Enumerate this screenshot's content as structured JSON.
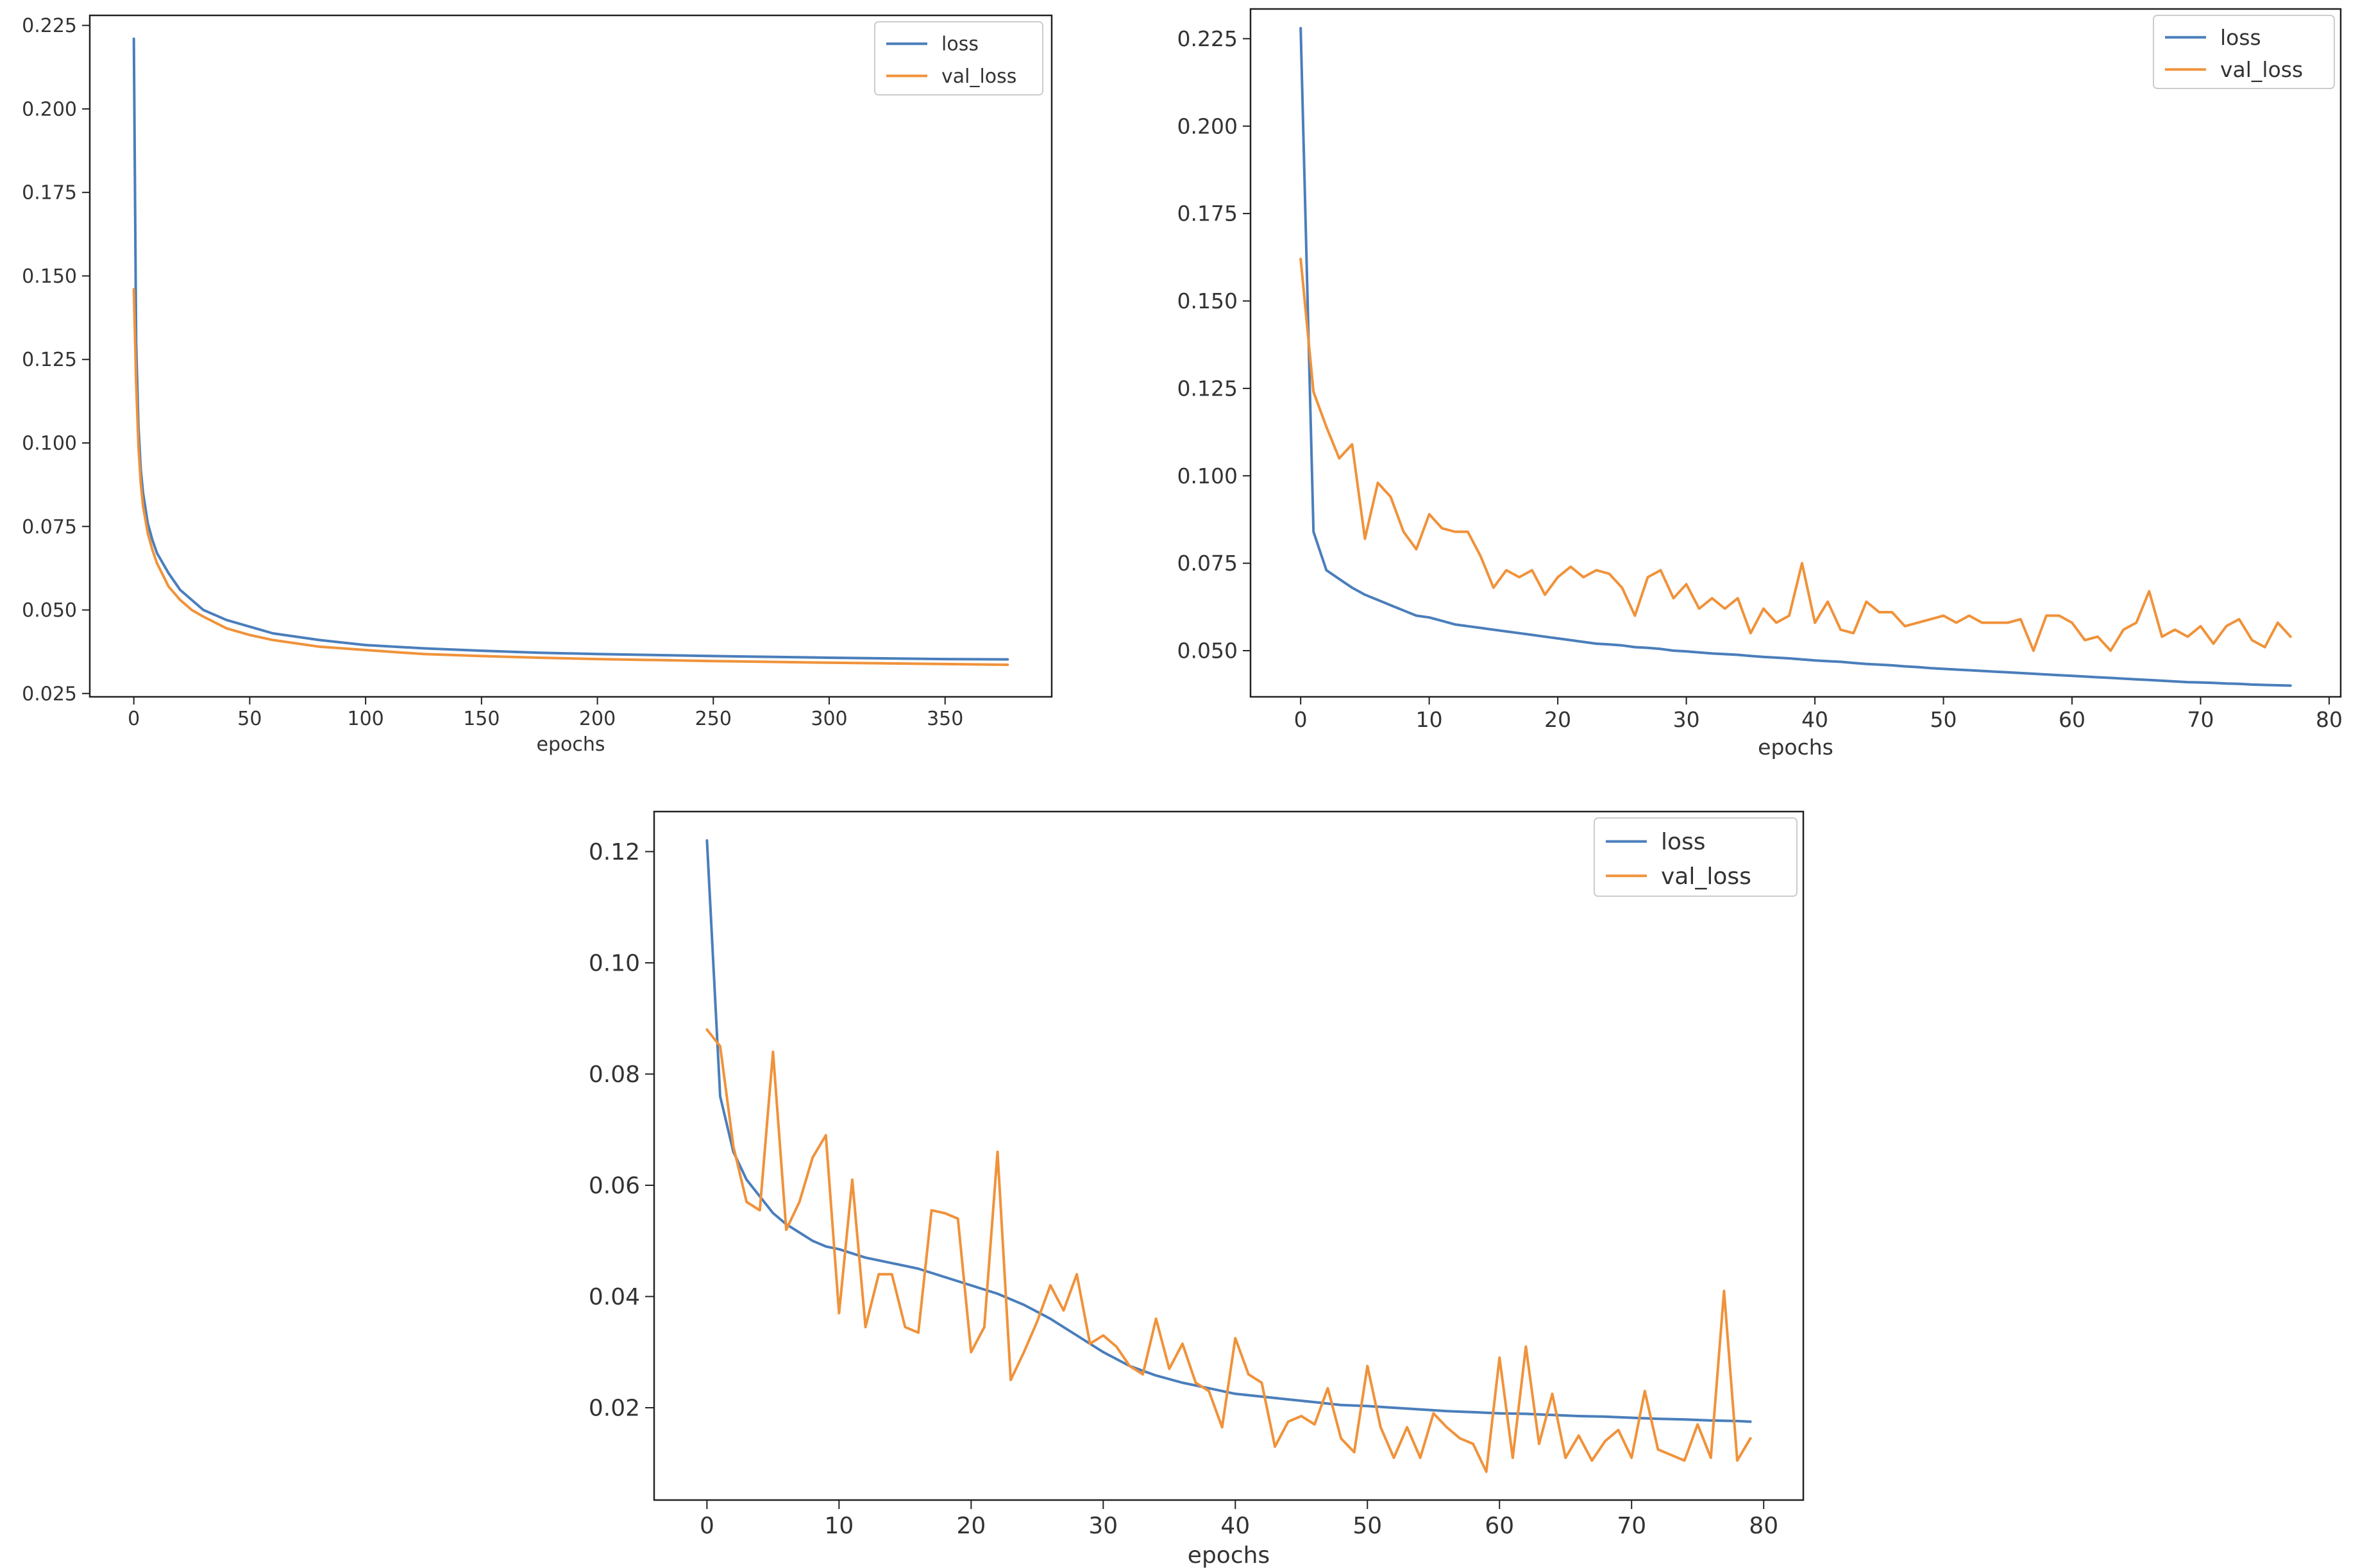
{
  "chart_data": [
    {
      "type": "line",
      "title": "",
      "xlabel": "epochs",
      "ylabel": "",
      "xlim": [
        -19,
        396
      ],
      "ylim": [
        0.024,
        0.228
      ],
      "xticks": [
        0,
        50,
        100,
        150,
        200,
        250,
        300,
        350
      ],
      "yticks": [
        0.025,
        0.05,
        0.075,
        0.1,
        0.125,
        0.15,
        0.175,
        0.2,
        0.225
      ],
      "ytick_labels": [
        "0.025",
        "0.050",
        "0.075",
        "0.100",
        "0.125",
        "0.150",
        "0.175",
        "0.200",
        "0.225"
      ],
      "legend_position": "top-right",
      "series": [
        {
          "name": "loss",
          "color": "#4a7ebb",
          "x": [
            0,
            1,
            2,
            3,
            4,
            6,
            8,
            10,
            15,
            20,
            25,
            30,
            40,
            50,
            60,
            80,
            100,
            125,
            150,
            175,
            200,
            250,
            300,
            350,
            377
          ],
          "y": [
            0.221,
            0.13,
            0.105,
            0.092,
            0.085,
            0.076,
            0.071,
            0.067,
            0.061,
            0.056,
            0.053,
            0.05,
            0.047,
            0.045,
            0.043,
            0.041,
            0.0395,
            0.0385,
            0.0378,
            0.0372,
            0.0368,
            0.0362,
            0.0357,
            0.0353,
            0.0352
          ]
        },
        {
          "name": "val_loss",
          "color": "#f0923a",
          "x": [
            0,
            1,
            2,
            3,
            4,
            6,
            8,
            10,
            15,
            20,
            25,
            30,
            40,
            50,
            60,
            80,
            100,
            125,
            150,
            175,
            200,
            250,
            300,
            350,
            377
          ],
          "y": [
            0.146,
            0.118,
            0.099,
            0.088,
            0.081,
            0.073,
            0.068,
            0.064,
            0.057,
            0.053,
            0.05,
            0.048,
            0.0445,
            0.0425,
            0.041,
            0.039,
            0.038,
            0.0368,
            0.0362,
            0.0357,
            0.0353,
            0.0347,
            0.0342,
            0.0338,
            0.0336
          ]
        }
      ]
    },
    {
      "type": "line",
      "title": "",
      "xlabel": "epochs",
      "ylabel": "",
      "xlim": [
        -3.9,
        80.9
      ],
      "ylim": [
        0.0368,
        0.2335
      ],
      "xticks": [
        0,
        10,
        20,
        30,
        40,
        50,
        60,
        70,
        80
      ],
      "yticks": [
        0.05,
        0.075,
        0.1,
        0.125,
        0.15,
        0.175,
        0.2,
        0.225
      ],
      "ytick_labels": [
        "0.050",
        "0.075",
        "0.100",
        "0.125",
        "0.150",
        "0.175",
        "0.200",
        "0.225"
      ],
      "legend_position": "top-right",
      "series": [
        {
          "name": "loss",
          "color": "#4a7ebb",
          "x": [
            0,
            1,
            2,
            3,
            4,
            5,
            6,
            7,
            8,
            9,
            10,
            11,
            12,
            13,
            14,
            15,
            16,
            17,
            18,
            19,
            20,
            21,
            22,
            23,
            24,
            25,
            26,
            27,
            28,
            29,
            30,
            31,
            32,
            33,
            34,
            35,
            36,
            37,
            38,
            39,
            40,
            41,
            42,
            43,
            44,
            45,
            46,
            47,
            48,
            49,
            50,
            51,
            52,
            53,
            54,
            55,
            56,
            57,
            58,
            59,
            60,
            61,
            62,
            63,
            64,
            65,
            66,
            67,
            68,
            69,
            70,
            71,
            72,
            73,
            74,
            75,
            76,
            77
          ],
          "y": [
            0.228,
            0.084,
            0.073,
            0.0705,
            0.068,
            0.066,
            0.0645,
            0.063,
            0.0615,
            0.06,
            0.0595,
            0.0585,
            0.0575,
            0.057,
            0.0565,
            0.056,
            0.0555,
            0.055,
            0.0545,
            0.054,
            0.0535,
            0.053,
            0.0525,
            0.052,
            0.0518,
            0.0515,
            0.051,
            0.0508,
            0.0505,
            0.05,
            0.0498,
            0.0495,
            0.0492,
            0.049,
            0.0488,
            0.0485,
            0.0482,
            0.048,
            0.0478,
            0.0475,
            0.0472,
            0.047,
            0.0468,
            0.0465,
            0.0462,
            0.046,
            0.0458,
            0.0455,
            0.0453,
            0.045,
            0.0448,
            0.0446,
            0.0444,
            0.0442,
            0.044,
            0.0438,
            0.0436,
            0.0434,
            0.0432,
            0.043,
            0.0428,
            0.0426,
            0.0424,
            0.0422,
            0.042,
            0.0418,
            0.0416,
            0.0414,
            0.0412,
            0.041,
            0.0409,
            0.0408,
            0.0406,
            0.0405,
            0.0403,
            0.0402,
            0.0401,
            0.04
          ]
        },
        {
          "name": "val_loss",
          "color": "#f0923a",
          "x": [
            0,
            1,
            2,
            3,
            4,
            5,
            6,
            7,
            8,
            9,
            10,
            11,
            12,
            13,
            14,
            15,
            16,
            17,
            18,
            19,
            20,
            21,
            22,
            23,
            24,
            25,
            26,
            27,
            28,
            29,
            30,
            31,
            32,
            33,
            34,
            35,
            36,
            37,
            38,
            39,
            40,
            41,
            42,
            43,
            44,
            45,
            46,
            47,
            48,
            49,
            50,
            51,
            52,
            53,
            54,
            55,
            56,
            57,
            58,
            59,
            60,
            61,
            62,
            63,
            64,
            65,
            66,
            67,
            68,
            69,
            70,
            71,
            72,
            73,
            74,
            75,
            76,
            77
          ],
          "y": [
            0.162,
            0.124,
            0.114,
            0.105,
            0.109,
            0.082,
            0.098,
            0.094,
            0.084,
            0.079,
            0.089,
            0.085,
            0.084,
            0.084,
            0.077,
            0.068,
            0.073,
            0.071,
            0.073,
            0.066,
            0.071,
            0.074,
            0.071,
            0.073,
            0.072,
            0.068,
            0.06,
            0.071,
            0.073,
            0.065,
            0.069,
            0.062,
            0.065,
            0.062,
            0.065,
            0.055,
            0.062,
            0.058,
            0.06,
            0.075,
            0.058,
            0.064,
            0.056,
            0.055,
            0.064,
            0.061,
            0.061,
            0.057,
            0.058,
            0.059,
            0.06,
            0.058,
            0.06,
            0.058,
            0.058,
            0.058,
            0.059,
            0.05,
            0.06,
            0.06,
            0.058,
            0.053,
            0.054,
            0.05,
            0.056,
            0.058,
            0.067,
            0.054,
            0.056,
            0.054,
            0.057,
            0.052,
            0.057,
            0.059,
            0.053,
            0.051,
            0.058,
            0.054
          ]
        }
      ]
    },
    {
      "type": "line",
      "title": "",
      "xlabel": "epochs",
      "ylabel": "",
      "xlim": [
        -4.0,
        83.0
      ],
      "ylim": [
        0.0034,
        0.1272
      ],
      "xticks": [
        0,
        10,
        20,
        30,
        40,
        50,
        60,
        70,
        80
      ],
      "yticks": [
        0.02,
        0.04,
        0.06,
        0.08,
        0.1,
        0.12
      ],
      "ytick_labels": [
        "0.02",
        "0.04",
        "0.06",
        "0.08",
        "0.10",
        "0.12"
      ],
      "legend_position": "top-right",
      "series": [
        {
          "name": "loss",
          "color": "#4a7ebb",
          "x": [
            0,
            1,
            2,
            3,
            4,
            5,
            6,
            7,
            8,
            9,
            10,
            12,
            14,
            16,
            18,
            20,
            22,
            24,
            26,
            28,
            30,
            32,
            34,
            36,
            38,
            40,
            42,
            44,
            46,
            48,
            50,
            52,
            54,
            56,
            58,
            60,
            62,
            64,
            66,
            68,
            70,
            72,
            74,
            76,
            78,
            79
          ],
          "y": [
            0.122,
            0.076,
            0.066,
            0.061,
            0.058,
            0.055,
            0.053,
            0.0515,
            0.05,
            0.049,
            0.0485,
            0.047,
            0.046,
            0.045,
            0.0435,
            0.042,
            0.0405,
            0.0385,
            0.036,
            0.033,
            0.03,
            0.0275,
            0.0258,
            0.0245,
            0.0235,
            0.0225,
            0.022,
            0.0215,
            0.021,
            0.0205,
            0.0203,
            0.02,
            0.0197,
            0.0194,
            0.0192,
            0.019,
            0.0189,
            0.0187,
            0.0185,
            0.0184,
            0.0182,
            0.018,
            0.0179,
            0.0177,
            0.0176,
            0.0175
          ]
        },
        {
          "name": "val_loss",
          "color": "#f0923a",
          "x": [
            0,
            1,
            2,
            3,
            4,
            5,
            6,
            7,
            8,
            9,
            10,
            11,
            12,
            13,
            14,
            15,
            16,
            17,
            18,
            19,
            20,
            21,
            22,
            23,
            24,
            25,
            26,
            27,
            28,
            29,
            30,
            31,
            32,
            33,
            34,
            35,
            36,
            37,
            38,
            39,
            40,
            41,
            42,
            43,
            44,
            45,
            46,
            47,
            48,
            49,
            50,
            51,
            52,
            53,
            54,
            55,
            56,
            57,
            58,
            59,
            60,
            61,
            62,
            63,
            64,
            65,
            66,
            67,
            68,
            69,
            70,
            71,
            72,
            73,
            74,
            75,
            76,
            77,
            78,
            79
          ],
          "y": [
            0.088,
            0.085,
            0.067,
            0.057,
            0.0555,
            0.084,
            0.052,
            0.057,
            0.065,
            0.069,
            0.037,
            0.061,
            0.0345,
            0.044,
            0.044,
            0.0345,
            0.0335,
            0.0555,
            0.055,
            0.054,
            0.03,
            0.0345,
            0.066,
            0.025,
            0.03,
            0.0355,
            0.042,
            0.0375,
            0.044,
            0.0315,
            0.033,
            0.031,
            0.0275,
            0.026,
            0.036,
            0.027,
            0.0315,
            0.0245,
            0.023,
            0.0165,
            0.0325,
            0.026,
            0.0245,
            0.013,
            0.0175,
            0.0185,
            0.017,
            0.0235,
            0.0145,
            0.012,
            0.0275,
            0.0165,
            0.011,
            0.0165,
            0.011,
            0.019,
            0.0165,
            0.0145,
            0.0135,
            0.0085,
            0.029,
            0.011,
            0.031,
            0.0135,
            0.0225,
            0.011,
            0.015,
            0.0105,
            0.014,
            0.016,
            0.011,
            0.023,
            0.0125,
            0.0115,
            0.0105,
            0.017,
            0.011,
            0.041,
            0.0105,
            0.0145
          ]
        }
      ]
    }
  ]
}
